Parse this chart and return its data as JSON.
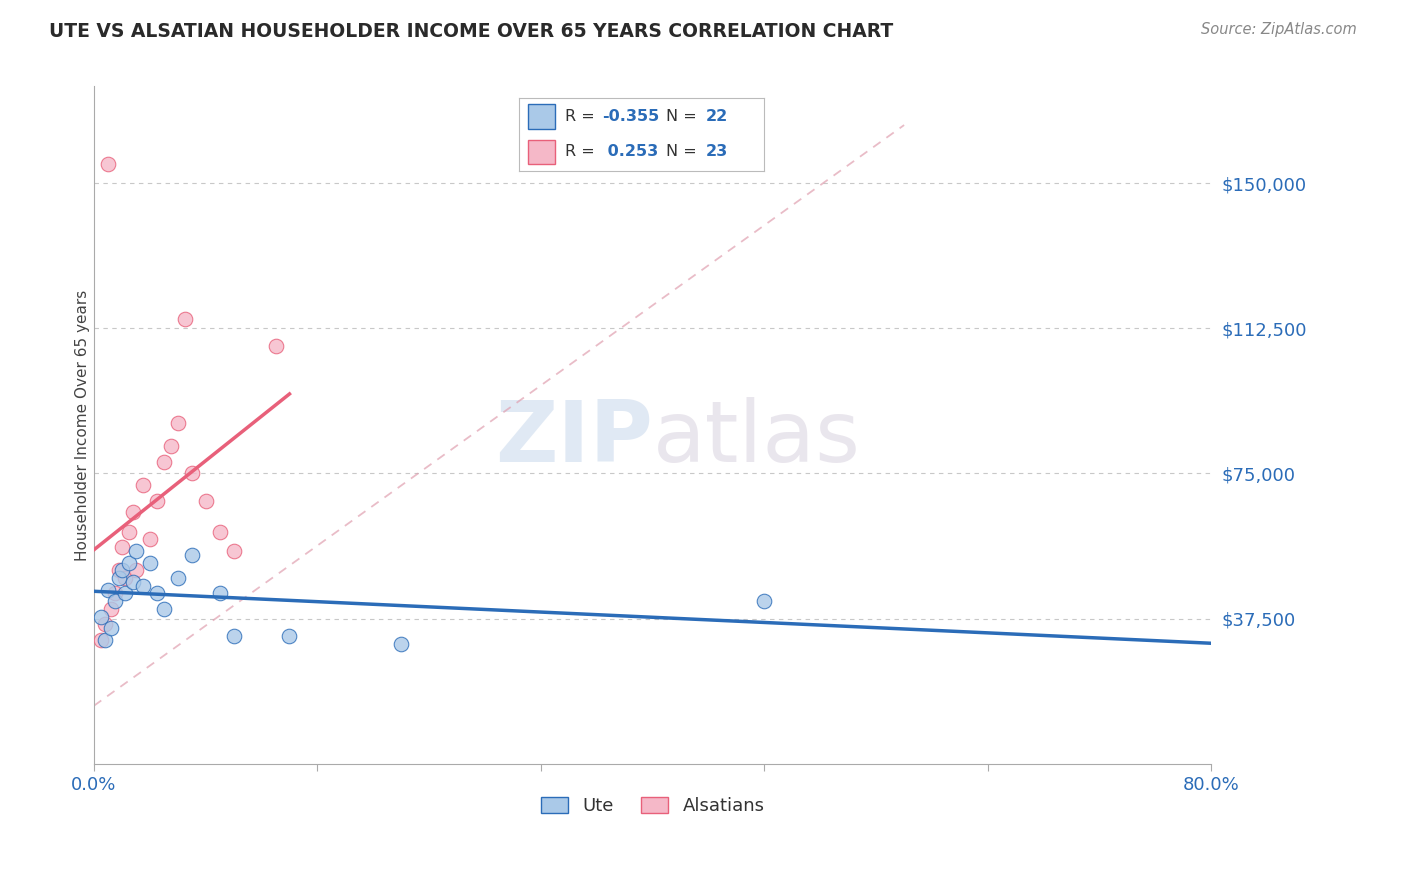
{
  "title": "UTE VS ALSATIAN HOUSEHOLDER INCOME OVER 65 YEARS CORRELATION CHART",
  "source": "Source: ZipAtlas.com",
  "ylabel": "Householder Income Over 65 years",
  "xlim": [
    0.0,
    0.8
  ],
  "ylim": [
    0,
    175000
  ],
  "yticks": [
    0,
    37500,
    75000,
    112500,
    150000
  ],
  "ytick_labels": [
    "",
    "$37,500",
    "$75,000",
    "$112,500",
    "$150,000"
  ],
  "xticks": [
    0.0,
    0.16,
    0.32,
    0.48,
    0.64,
    0.8
  ],
  "xtick_labels": [
    "0.0%",
    "",
    "",
    "",
    "",
    "80.0%"
  ],
  "ute_x": [
    0.005,
    0.008,
    0.01,
    0.012,
    0.015,
    0.018,
    0.02,
    0.022,
    0.025,
    0.028,
    0.03,
    0.035,
    0.04,
    0.045,
    0.05,
    0.06,
    0.07,
    0.09,
    0.1,
    0.14,
    0.22,
    0.48
  ],
  "ute_y": [
    38000,
    32000,
    45000,
    35000,
    42000,
    48000,
    50000,
    44000,
    52000,
    47000,
    55000,
    46000,
    52000,
    44000,
    40000,
    48000,
    54000,
    44000,
    33000,
    33000,
    31000,
    42000
  ],
  "alsatian_x": [
    0.005,
    0.008,
    0.01,
    0.012,
    0.015,
    0.018,
    0.02,
    0.022,
    0.025,
    0.028,
    0.03,
    0.035,
    0.04,
    0.045,
    0.05,
    0.055,
    0.06,
    0.065,
    0.07,
    0.08,
    0.09,
    0.1,
    0.13
  ],
  "alsatian_y": [
    32000,
    36000,
    155000,
    40000,
    44000,
    50000,
    56000,
    48000,
    60000,
    65000,
    50000,
    72000,
    58000,
    68000,
    78000,
    82000,
    88000,
    115000,
    75000,
    68000,
    60000,
    55000,
    108000
  ],
  "ute_R": -0.355,
  "ute_N": 22,
  "alsatian_R": 0.253,
  "alsatian_N": 23,
  "ute_color": "#aac9e8",
  "alsatian_color": "#f5b8c8",
  "ute_line_color": "#2b6cb8",
  "alsatian_line_color": "#e8607a",
  "dashed_line_color": "#e0a0b0",
  "r_color": "#2b6cb8",
  "background_color": "#ffffff",
  "grid_color": "#c8c8c8",
  "marker_size": 110
}
